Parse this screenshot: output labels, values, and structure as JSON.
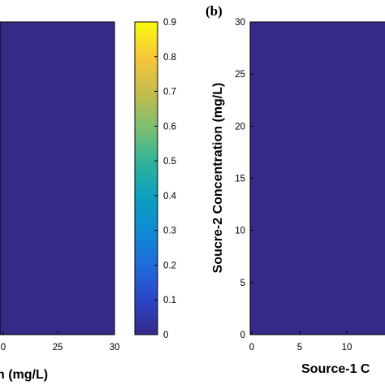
{
  "chart_data": [
    {
      "type": "heatmap",
      "panel": "left (cropped)",
      "x_ticks": [
        "0",
        "25",
        "30"
      ],
      "x_label_visible": "n (mg/L)",
      "value_fill": 0,
      "xlim": [
        0,
        30
      ],
      "fill_color": "#352a87"
    },
    {
      "type": "colorbar",
      "ticks": [
        "0.9",
        "0.8",
        "0.7",
        "0.6",
        "0.5",
        "0.4",
        "0.3",
        "0.2",
        "0.1",
        "0"
      ],
      "range": [
        0,
        0.9
      ],
      "colormap": "parula"
    },
    {
      "type": "heatmap",
      "panel_label": "(b)",
      "xlabel_visible": "Source-1 C",
      "ylabel": "Soucre-2 Concentration (mg/L)",
      "x_ticks": [
        "0",
        "5",
        "10"
      ],
      "y_ticks": [
        "0",
        "5",
        "10",
        "15",
        "20",
        "25",
        "30"
      ],
      "xlim": [
        0,
        30
      ],
      "ylim": [
        0,
        30
      ],
      "value_fill": 0,
      "fill_color": "#352a87"
    }
  ],
  "colors": {
    "heatmap_fill": "#352a87",
    "axis": "#000000"
  }
}
